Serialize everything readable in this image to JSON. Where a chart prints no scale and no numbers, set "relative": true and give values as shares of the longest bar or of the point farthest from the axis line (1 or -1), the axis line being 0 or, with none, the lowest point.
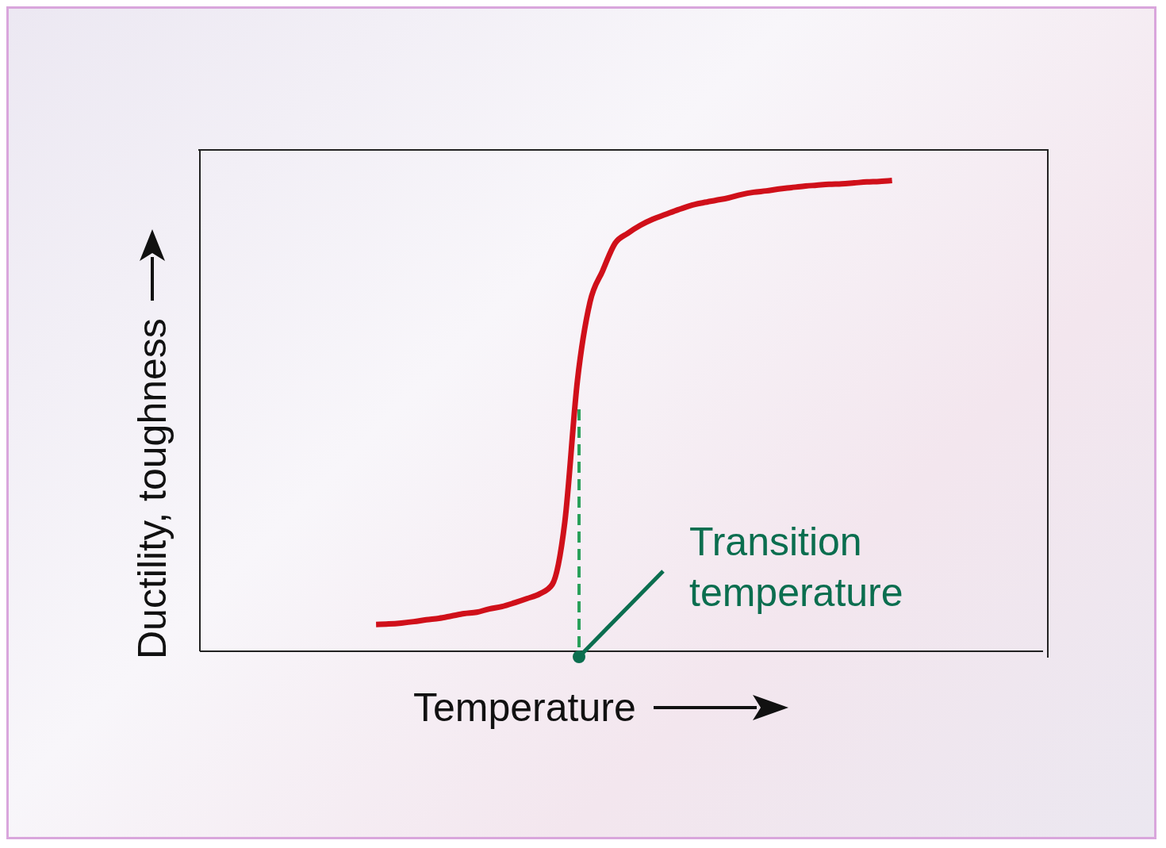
{
  "chart_data": {
    "type": "line",
    "relative": true,
    "xlabel": "Temperature",
    "ylabel": "Ductility, toughness",
    "annotations": [
      "Transition temperature"
    ],
    "grid": false,
    "marker": "none",
    "line_style": "solid",
    "categories": [
      null,
      null,
      null,
      null,
      null,
      null,
      null,
      null,
      null,
      null,
      null,
      null,
      null,
      null,
      null,
      null,
      null,
      null,
      null,
      null,
      null,
      null,
      null,
      null,
      null,
      null,
      null,
      null,
      null,
      null,
      null,
      null,
      null,
      null,
      null,
      null,
      null,
      null,
      null,
      null,
      null,
      null,
      null,
      null,
      null,
      null,
      null,
      null,
      null,
      null,
      null,
      null,
      null,
      null,
      null,
      null,
      null,
      null,
      null,
      null,
      null,
      null,
      null,
      null,
      null,
      null,
      null,
      null
    ],
    "series": [
      {
        "color": "#d0101a",
        "values": [
          null,
          null,
          null,
          null,
          null,
          null,
          null,
          null,
          null,
          null,
          null,
          null,
          null,
          null,
          0.057,
          0.058,
          0.06,
          0.063,
          0.067,
          0.07,
          0.075,
          0.08,
          0.083,
          0.09,
          0.095,
          0.103,
          0.112,
          0.122,
          0.142,
          0.275,
          0.575,
          0.742,
          0.808,
          0.867,
          0.888,
          0.905,
          0.918,
          0.928,
          0.938,
          0.947,
          0.953,
          0.958,
          0.963,
          0.97,
          0.975,
          0.978,
          0.982,
          0.985,
          0.988,
          0.99,
          0.992,
          0.993,
          0.995,
          0.997,
          0.998,
          1,
          null,
          null,
          null,
          null,
          null,
          null,
          null,
          null,
          null,
          null,
          null,
          null
        ]
      }
    ]
  }
}
